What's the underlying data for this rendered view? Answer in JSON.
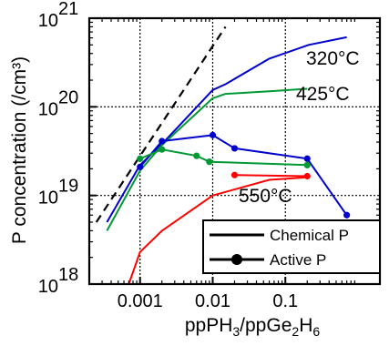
{
  "chart_data": {
    "type": "line",
    "xlabel_parts": [
      "ppPH",
      "3",
      "/ppGe",
      "2",
      "H",
      "6"
    ],
    "ylabel": "P concentration (/cm³)",
    "x_scale": "log",
    "y_scale": "log",
    "xlim": [
      0.0002,
      2.0
    ],
    "ylim": [
      1e+18,
      1e+21
    ],
    "x_ticks": [
      {
        "value": 0.001,
        "label": "0.001"
      },
      {
        "value": 0.01,
        "label": "0.01"
      },
      {
        "value": 0.1,
        "label": "0.1"
      }
    ],
    "y_ticks": [
      {
        "value": 1e+18,
        "base": "10",
        "exp": "18"
      },
      {
        "value": 1e+19,
        "base": "10",
        "exp": "19"
      },
      {
        "value": 1e+20,
        "base": "10",
        "exp": "20"
      },
      {
        "value": 1e+21,
        "base": "10",
        "exp": "21"
      }
    ],
    "grid": true,
    "series": [
      {
        "name": "320°C",
        "kind": "chemical",
        "color": "#0000cc",
        "x": [
          0.00035,
          0.001,
          0.002,
          0.01,
          0.015,
          0.06,
          0.21,
          0.7
        ],
        "y": [
          5e+18,
          2.2e+19,
          3.8e+19,
          1.55e+20,
          1.8e+20,
          3.5e+20,
          5e+20,
          6.1e+20
        ]
      },
      {
        "name": "425°C",
        "kind": "chemical",
        "color": "#009933",
        "x": [
          0.00035,
          0.001,
          0.002,
          0.01,
          0.015,
          0.06,
          0.2
        ],
        "y": [
          4e+18,
          1.9e+19,
          3.7e+19,
          1.25e+20,
          1.4e+20,
          1.5e+20,
          1.6e+20
        ],
        "label_color": "#009933"
      },
      {
        "name": "550°C",
        "kind": "chemical",
        "color": "#ff0000",
        "x": [
          0.0007,
          0.001,
          0.002,
          0.01,
          0.06,
          0.2
        ],
        "y": [
          1e+18,
          2.3e+18,
          4e+18,
          1e+19,
          1.5e+19,
          1.6e+19
        ]
      },
      {
        "name": "320°C",
        "kind": "active",
        "color": "#0000cc",
        "x": [
          0.001,
          0.002,
          0.01,
          0.02,
          0.2,
          0.7
        ],
        "y": [
          2.1e+19,
          4.1e+19,
          4.8e+19,
          3.4e+19,
          2.6e+19,
          6e+18
        ]
      },
      {
        "name": "425°C",
        "kind": "active",
        "color": "#009933",
        "x": [
          0.001,
          0.002,
          0.006,
          0.009,
          0.2
        ],
        "y": [
          2.6e+19,
          3.3e+19,
          2.8e+19,
          2.4e+19,
          2.2e+19
        ]
      },
      {
        "name": "550°C",
        "kind": "active",
        "color": "#ff0000",
        "x": [
          0.02,
          0.2
        ],
        "y": [
          1.7e+19,
          1.65e+19
        ]
      }
    ],
    "dashed_line": {
      "x": [
        0.00025,
        0.015
      ],
      "y": [
        5e+18,
        8e+20
      ],
      "color": "#000000"
    },
    "series_labels": [
      {
        "text": "320°C",
        "color": "#0000ff"
      },
      {
        "text": "425°C",
        "color": "#009933"
      },
      {
        "text": "550°C",
        "color": "#ff0000"
      }
    ],
    "legend": {
      "placement": "bottom-right",
      "entries": [
        {
          "label": "Chemical P",
          "marker": "line"
        },
        {
          "label": "Active P",
          "marker": "line-dot"
        }
      ]
    }
  }
}
